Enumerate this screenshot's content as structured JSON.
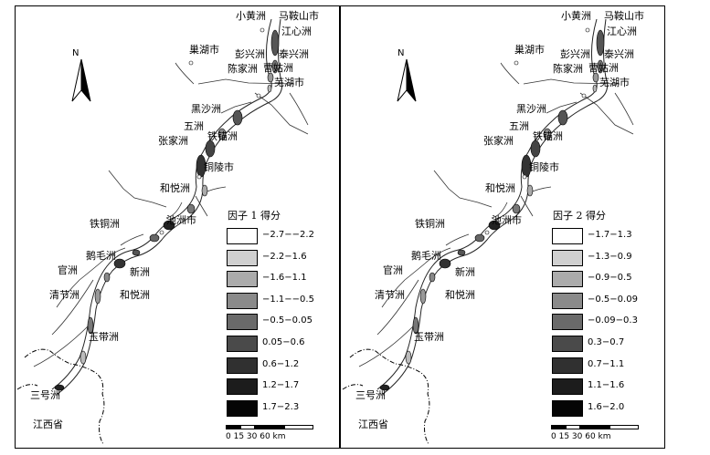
{
  "places": {
    "xiaohuangzhou": "小黄洲",
    "maanshan": "马鞍山市",
    "jiangxinzhou": "江心洲",
    "chaohu": "巢湖市",
    "pengxingzhou": "彭兴洲",
    "taixingzhou": "泰兴洲",
    "chenjiazhou": "陈家洲",
    "caoguzhou": "曹姑洲",
    "wuhu": "芜湖市",
    "heishazhou": "黑沙洲",
    "wuzhou": "五洲",
    "tieliuzhou": "铁锚洲",
    "zhangjiazhou": "张家洲",
    "tongling": "铜陵市",
    "heyuezhou_top": "和悦洲",
    "tietongzhou": "铁铜洲",
    "chizhou": "池洲市",
    "emaozhou": "鹅毛洲",
    "guanzhou": "官洲",
    "xinzhou": "新洲",
    "qingjiezhou": "清节洲",
    "heyuezhou_low": "和悦洲",
    "yudaizhou": "玉带洲",
    "sanhaozhou": "三号洲",
    "jiangxi": "江西省"
  },
  "north_label": "N",
  "panels": [
    {
      "id": "factor1",
      "legend_title": "因子 1 得分",
      "legend": [
        "−2.7−−2.2",
        "−2.2−1.6",
        "−1.6−1.1",
        "−1.1−−0.5",
        "−0.5−0.05",
        "0.05−0.6",
        "0.6−1.2",
        "1.2−1.7",
        "1.7−2.3"
      ]
    },
    {
      "id": "factor2",
      "legend_title": "因子 2 得分",
      "legend": [
        "−1.7−1.3",
        "−1.3−0.9",
        "−0.9−0.5",
        "−0.5−0.09",
        "−0.09−0.3",
        "0.3−0.7",
        "0.7−1.1",
        "1.1−1.6",
        "1.6−2.0"
      ]
    }
  ],
  "legend_colors": [
    "#ffffff",
    "#d0d0d0",
    "#ababab",
    "#8a8a8a",
    "#6a6a6a",
    "#4a4a4a",
    "#303030",
    "#1c1c1c",
    "#050505"
  ],
  "scale": {
    "ticks": "0 15 30      60 km"
  }
}
